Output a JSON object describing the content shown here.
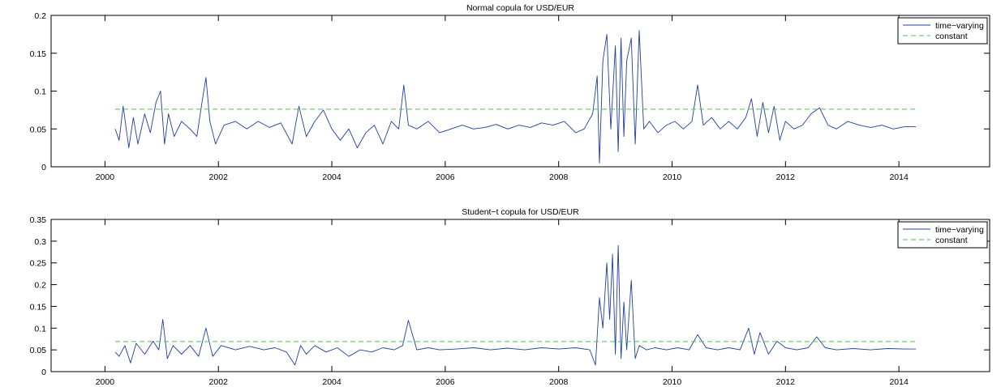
{
  "colors": {
    "time_varying": "#1f3f9f",
    "constant": "#4fc24f",
    "axes": "#000000",
    "background": "#ffffff"
  },
  "chart_data": [
    {
      "type": "line",
      "title": "Normal copula for USD/EUR",
      "xlabel": "",
      "ylabel": "",
      "xlim": [
        1999.05,
        2015.6
      ],
      "ylim": [
        0,
        0.2
      ],
      "xticks": [
        2000,
        2002,
        2004,
        2006,
        2008,
        2010,
        2012,
        2014
      ],
      "xtick_labels": [
        "2000",
        "2002",
        "2004",
        "2006",
        "2008",
        "2010",
        "2012",
        "2014"
      ],
      "yticks": [
        0,
        0.05,
        0.1,
        0.15,
        0.2
      ],
      "ytick_labels": [
        "0",
        "0.05",
        "0.1",
        "0.15",
        "0.2"
      ],
      "grid": false,
      "legend_position": "top-right",
      "series": [
        {
          "name": "time−varying",
          "style": "solid",
          "color": "#1f3f9f",
          "x": [
            2000.18,
            2000.25,
            2000.32,
            2000.42,
            2000.5,
            2000.58,
            2000.7,
            2000.8,
            2000.9,
            2000.98,
            2001.05,
            2001.12,
            2001.22,
            2001.35,
            2001.5,
            2001.62,
            2001.72,
            2001.78,
            2001.85,
            2001.95,
            2002.1,
            2002.3,
            2002.5,
            2002.7,
            2002.9,
            2003.1,
            2003.3,
            2003.42,
            2003.55,
            2003.7,
            2003.85,
            2004.0,
            2004.15,
            2004.3,
            2004.45,
            2004.6,
            2004.75,
            2004.9,
            2005.05,
            2005.18,
            2005.27,
            2005.35,
            2005.5,
            2005.7,
            2005.9,
            2006.1,
            2006.3,
            2006.5,
            2006.7,
            2006.9,
            2007.1,
            2007.3,
            2007.5,
            2007.7,
            2007.9,
            2008.1,
            2008.3,
            2008.45,
            2008.6,
            2008.68,
            2008.72,
            2008.78,
            2008.85,
            2008.92,
            2009.0,
            2009.05,
            2009.1,
            2009.15,
            2009.2,
            2009.28,
            2009.35,
            2009.42,
            2009.5,
            2009.6,
            2009.75,
            2009.9,
            2010.05,
            2010.2,
            2010.35,
            2010.45,
            2010.55,
            2010.7,
            2010.85,
            2011.0,
            2011.15,
            2011.3,
            2011.4,
            2011.5,
            2011.6,
            2011.7,
            2011.8,
            2011.9,
            2012.0,
            2012.15,
            2012.3,
            2012.45,
            2012.6,
            2012.75,
            2012.9,
            2013.1,
            2013.3,
            2013.5,
            2013.7,
            2013.9,
            2014.1,
            2014.3
          ],
          "y": [
            0.05,
            0.035,
            0.08,
            0.025,
            0.065,
            0.03,
            0.07,
            0.045,
            0.085,
            0.1,
            0.03,
            0.07,
            0.04,
            0.06,
            0.05,
            0.04,
            0.09,
            0.118,
            0.06,
            0.03,
            0.055,
            0.06,
            0.05,
            0.06,
            0.052,
            0.058,
            0.03,
            0.08,
            0.04,
            0.06,
            0.075,
            0.05,
            0.035,
            0.05,
            0.025,
            0.045,
            0.055,
            0.03,
            0.06,
            0.05,
            0.108,
            0.055,
            0.05,
            0.06,
            0.045,
            0.05,
            0.055,
            0.05,
            0.052,
            0.056,
            0.05,
            0.055,
            0.052,
            0.058,
            0.055,
            0.06,
            0.045,
            0.05,
            0.07,
            0.12,
            0.005,
            0.14,
            0.175,
            0.05,
            0.16,
            0.02,
            0.17,
            0.04,
            0.14,
            0.17,
            0.03,
            0.18,
            0.05,
            0.06,
            0.045,
            0.055,
            0.06,
            0.05,
            0.06,
            0.108,
            0.055,
            0.065,
            0.05,
            0.06,
            0.05,
            0.065,
            0.09,
            0.04,
            0.085,
            0.045,
            0.08,
            0.035,
            0.06,
            0.05,
            0.055,
            0.07,
            0.078,
            0.055,
            0.05,
            0.06,
            0.055,
            0.052,
            0.055,
            0.05,
            0.053,
            0.053
          ]
        },
        {
          "name": "constant",
          "style": "dashed",
          "color": "#4fc24f",
          "x": [
            2000.18,
            2014.3
          ],
          "y": [
            0.076,
            0.076
          ]
        }
      ]
    },
    {
      "type": "line",
      "title": "Student−t copula for USD/EUR",
      "xlabel": "",
      "ylabel": "",
      "xlim": [
        1999.05,
        2015.6
      ],
      "ylim": [
        0,
        0.35
      ],
      "xticks": [
        2000,
        2002,
        2004,
        2006,
        2008,
        2010,
        2012,
        2014
      ],
      "xtick_labels": [
        "2000",
        "2002",
        "2004",
        "2006",
        "2008",
        "2010",
        "2012",
        "2014"
      ],
      "yticks": [
        0,
        0.05,
        0.1,
        0.15,
        0.2,
        0.25,
        0.3,
        0.35
      ],
      "ytick_labels": [
        "0",
        "0.05",
        "0.1",
        "0.15",
        "0.2",
        "0.25",
        "0.3",
        "0.35"
      ],
      "grid": false,
      "legend_position": "top-right",
      "series": [
        {
          "name": "time−varying",
          "style": "solid",
          "color": "#1f3f9f",
          "x": [
            2000.18,
            2000.25,
            2000.35,
            2000.45,
            2000.55,
            2000.7,
            2000.85,
            2000.95,
            2001.02,
            2001.1,
            2001.2,
            2001.35,
            2001.5,
            2001.65,
            2001.78,
            2001.9,
            2002.05,
            2002.3,
            2002.55,
            2002.8,
            2003.0,
            2003.2,
            2003.35,
            2003.45,
            2003.55,
            2003.7,
            2003.9,
            2004.1,
            2004.3,
            2004.5,
            2004.7,
            2004.9,
            2005.1,
            2005.25,
            2005.35,
            2005.5,
            2005.7,
            2005.9,
            2006.2,
            2006.5,
            2006.8,
            2007.1,
            2007.4,
            2007.7,
            2008.0,
            2008.3,
            2008.55,
            2008.65,
            2008.72,
            2008.78,
            2008.85,
            2008.9,
            2008.95,
            2009.0,
            2009.05,
            2009.1,
            2009.15,
            2009.2,
            2009.28,
            2009.35,
            2009.42,
            2009.55,
            2009.7,
            2009.9,
            2010.1,
            2010.3,
            2010.45,
            2010.6,
            2010.8,
            2011.0,
            2011.2,
            2011.35,
            2011.45,
            2011.55,
            2011.7,
            2011.85,
            2012.0,
            2012.2,
            2012.4,
            2012.55,
            2012.7,
            2012.9,
            2013.2,
            2013.5,
            2013.8,
            2014.1,
            2014.3
          ],
          "y": [
            0.045,
            0.035,
            0.06,
            0.02,
            0.065,
            0.04,
            0.07,
            0.05,
            0.12,
            0.03,
            0.06,
            0.04,
            0.06,
            0.035,
            0.1,
            0.035,
            0.06,
            0.05,
            0.058,
            0.05,
            0.055,
            0.045,
            0.015,
            0.06,
            0.04,
            0.06,
            0.045,
            0.055,
            0.035,
            0.05,
            0.045,
            0.055,
            0.05,
            0.06,
            0.118,
            0.05,
            0.055,
            0.05,
            0.052,
            0.055,
            0.05,
            0.054,
            0.05,
            0.055,
            0.052,
            0.055,
            0.05,
            0.015,
            0.17,
            0.1,
            0.25,
            0.12,
            0.27,
            0.04,
            0.29,
            0.03,
            0.16,
            0.05,
            0.21,
            0.03,
            0.06,
            0.05,
            0.055,
            0.05,
            0.055,
            0.05,
            0.085,
            0.055,
            0.05,
            0.055,
            0.05,
            0.1,
            0.04,
            0.09,
            0.04,
            0.07,
            0.055,
            0.05,
            0.055,
            0.08,
            0.055,
            0.05,
            0.053,
            0.05,
            0.053,
            0.052,
            0.052
          ]
        },
        {
          "name": "constant",
          "style": "dashed",
          "color": "#4fc24f",
          "x": [
            2000.18,
            2014.3
          ],
          "y": [
            0.069,
            0.069
          ]
        }
      ]
    }
  ]
}
